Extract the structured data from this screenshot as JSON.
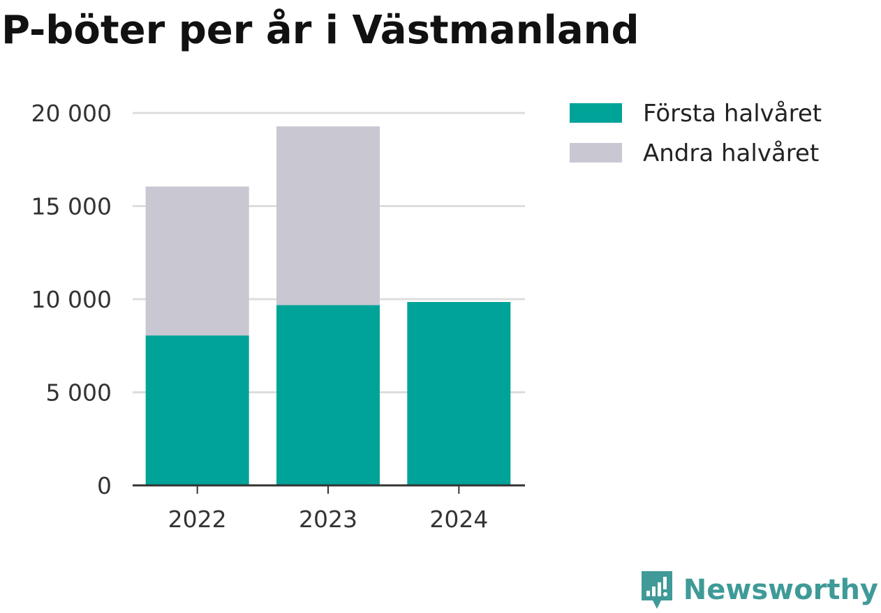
{
  "title": "P-böter per år i Västmanland",
  "brand": {
    "name": "Newsworthy",
    "color": "#3f9a98"
  },
  "colors": {
    "first_half": "#00a398",
    "second_half": "#c8c7d2",
    "grid": "#dddddd",
    "axis": "#333333"
  },
  "chart_data": {
    "type": "bar",
    "stacked": true,
    "title": "P-böter per år i Västmanland",
    "xlabel": "",
    "ylabel": "",
    "categories": [
      "2022",
      "2023",
      "2024"
    ],
    "series": [
      {
        "name": "Första halvåret",
        "color": "#00a398",
        "values": [
          8050,
          9680,
          9850
        ]
      },
      {
        "name": "Andra halvåret",
        "color": "#c8c7d2",
        "values": [
          8000,
          9600,
          0
        ]
      }
    ],
    "ylim": [
      0,
      20000
    ],
    "yticks": [
      0,
      5000,
      10000,
      15000,
      20000
    ],
    "ytick_labels": [
      "0",
      "5 000",
      "10 000",
      "15 000",
      "20 000"
    ],
    "grid": true,
    "legend_position": "top-right"
  }
}
